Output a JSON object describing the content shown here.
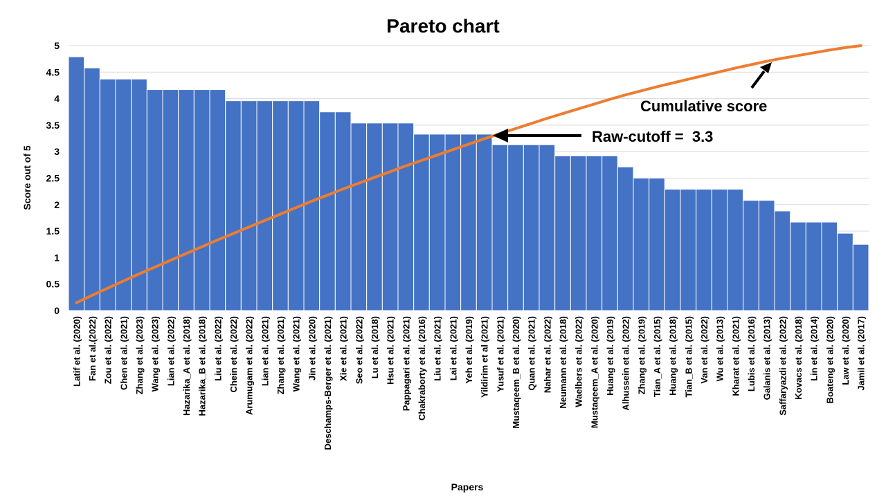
{
  "chart_data": {
    "type": "bar",
    "title": "Pareto chart",
    "xlabel": "Papers",
    "ylabel": "Score out of 5",
    "ylim": [
      0,
      5
    ],
    "yticks": [
      "0",
      "0.5",
      "1",
      "1.5",
      "2",
      "2.5",
      "3",
      "3.5",
      "4",
      "4.5",
      "5"
    ],
    "grid": true,
    "categories": [
      "Latif et al. (2020)",
      "Fan et al.(2022)",
      "Zou et al. (2022)",
      "Chen et al. (2021)",
      "Zhang et al. (2023)",
      "Wang et al. (2023)",
      "Lian et al. (2022)",
      "Hazarika_A et al. (2018)",
      "Hazarika_B et al. (2018)",
      "Liu et al. (2022)",
      "Chein et al. (2022)",
      "Arumugam et al. (2022)",
      "Lian et al. (2021)",
      "Zhang et al. (2021)",
      "Wang et al. (2021)",
      "Jin et al. (2020)",
      "Deschamps-Berger et al. (2021)",
      "Xie et al. (2021)",
      "Seo et al. (2022)",
      "Lu et al. (2018)",
      "Hsu et al. (2021)",
      "Pappagari et al. (2021)",
      "Chakraborty et al. (2016)",
      "Liu et al. (2021)",
      "Lai et al. (2021)",
      "Yeh et al. (2019)",
      "Yildirim et al (2021)",
      "Yusuf et al. (2021)",
      "Mustaqeem_B et al. (2020)",
      "Quan et al. (2021)",
      "Nahar et al. (2022)",
      "Neumann et al. (2018)",
      "Waelbers et al. (2022)",
      "Mustaqeem_A et al. (2020)",
      "Huang et al. (2019)",
      "Alhussein et al. (2022)",
      "Zhang et al. (2019)",
      "Tian_A et al. (2015)",
      "Huang et al. (2018)",
      "Tian_B et al. (2015)",
      "Van et al. (2022)",
      "Wu et al. (2013)",
      "Kharat et al. (2021)",
      "Lubis et al. (2016)",
      "Galanis et al. (2013)",
      "Saffaryazdi et al. (2022)",
      "Kovacs et al. (2018)",
      "Lin et al. (2014)",
      "Boateng et al. (2020)",
      "Law et al. (2020)",
      "Jamil et al. (2017)"
    ],
    "series": [
      {
        "type": "bar",
        "values": [
          4.79,
          4.58,
          4.37,
          4.37,
          4.37,
          4.17,
          4.17,
          4.17,
          4.17,
          4.17,
          3.96,
          3.96,
          3.96,
          3.96,
          3.96,
          3.96,
          3.75,
          3.75,
          3.54,
          3.54,
          3.54,
          3.54,
          3.33,
          3.33,
          3.33,
          3.33,
          3.33,
          3.13,
          3.13,
          3.13,
          3.13,
          2.92,
          2.92,
          2.92,
          2.92,
          2.71,
          2.5,
          2.5,
          2.29,
          2.29,
          2.29,
          2.29,
          2.29,
          2.08,
          2.08,
          1.88,
          1.67,
          1.67,
          1.67,
          1.46,
          1.25
        ],
        "color": "#4472c4"
      },
      {
        "type": "line",
        "note_series": "cumulative",
        "color": "#ed7d31"
      }
    ],
    "annotations": {
      "cutoff_label": "Raw-cutoff =  3.3",
      "cutoff_value": 3.3,
      "cumulative_label": "Cumulative score"
    }
  }
}
